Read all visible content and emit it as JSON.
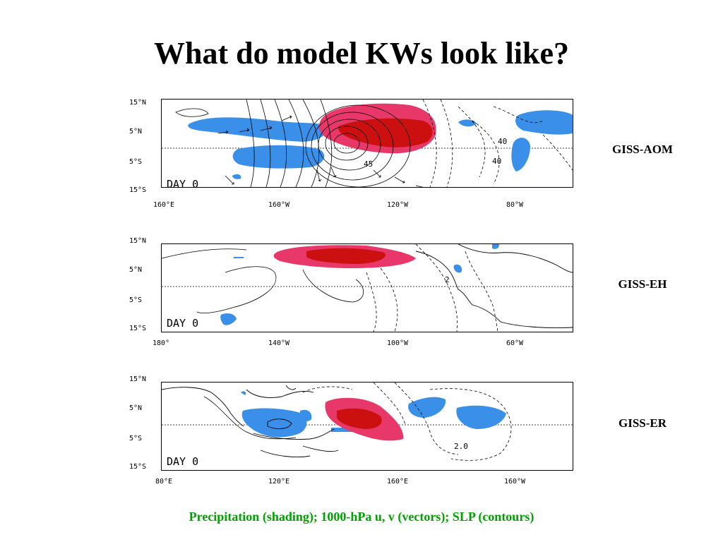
{
  "slide": {
    "title": "What do model KWs look like?",
    "caption": "Precipitation (shading); 1000-hPa u, v (vectors); SLP (contours)"
  },
  "colors": {
    "positive_precip": "#e8386a",
    "positive_precip_core": "#cc1010",
    "negative_precip": "#3a8fe8",
    "caption": "#00a000"
  },
  "panels": [
    {
      "model": "GISS-AOM",
      "day_label": "DAY  0",
      "lat_labels": [
        "15°N",
        "5°N",
        "5°S",
        "15°S"
      ],
      "lon_labels": [
        "160°E",
        "160°W",
        "120°W",
        "80°W"
      ],
      "contour_labels": [
        "40",
        "40",
        "45"
      ]
    },
    {
      "model": "GISS-EH",
      "day_label": "DAY  0",
      "lat_labels": [
        "15°N",
        "5°N",
        "5°S",
        "15°S"
      ],
      "lon_labels": [
        "180°",
        "140°W",
        "100°W",
        "60°W"
      ],
      "contour_labels": [
        "2"
      ]
    },
    {
      "model": "GISS-ER",
      "day_label": "DAY  0",
      "lat_labels": [
        "15°N",
        "5°N",
        "5°S",
        "15°S"
      ],
      "lon_labels": [
        "80°E",
        "120°E",
        "160°E",
        "160°W"
      ],
      "contour_labels": [
        "2.0"
      ]
    }
  ]
}
